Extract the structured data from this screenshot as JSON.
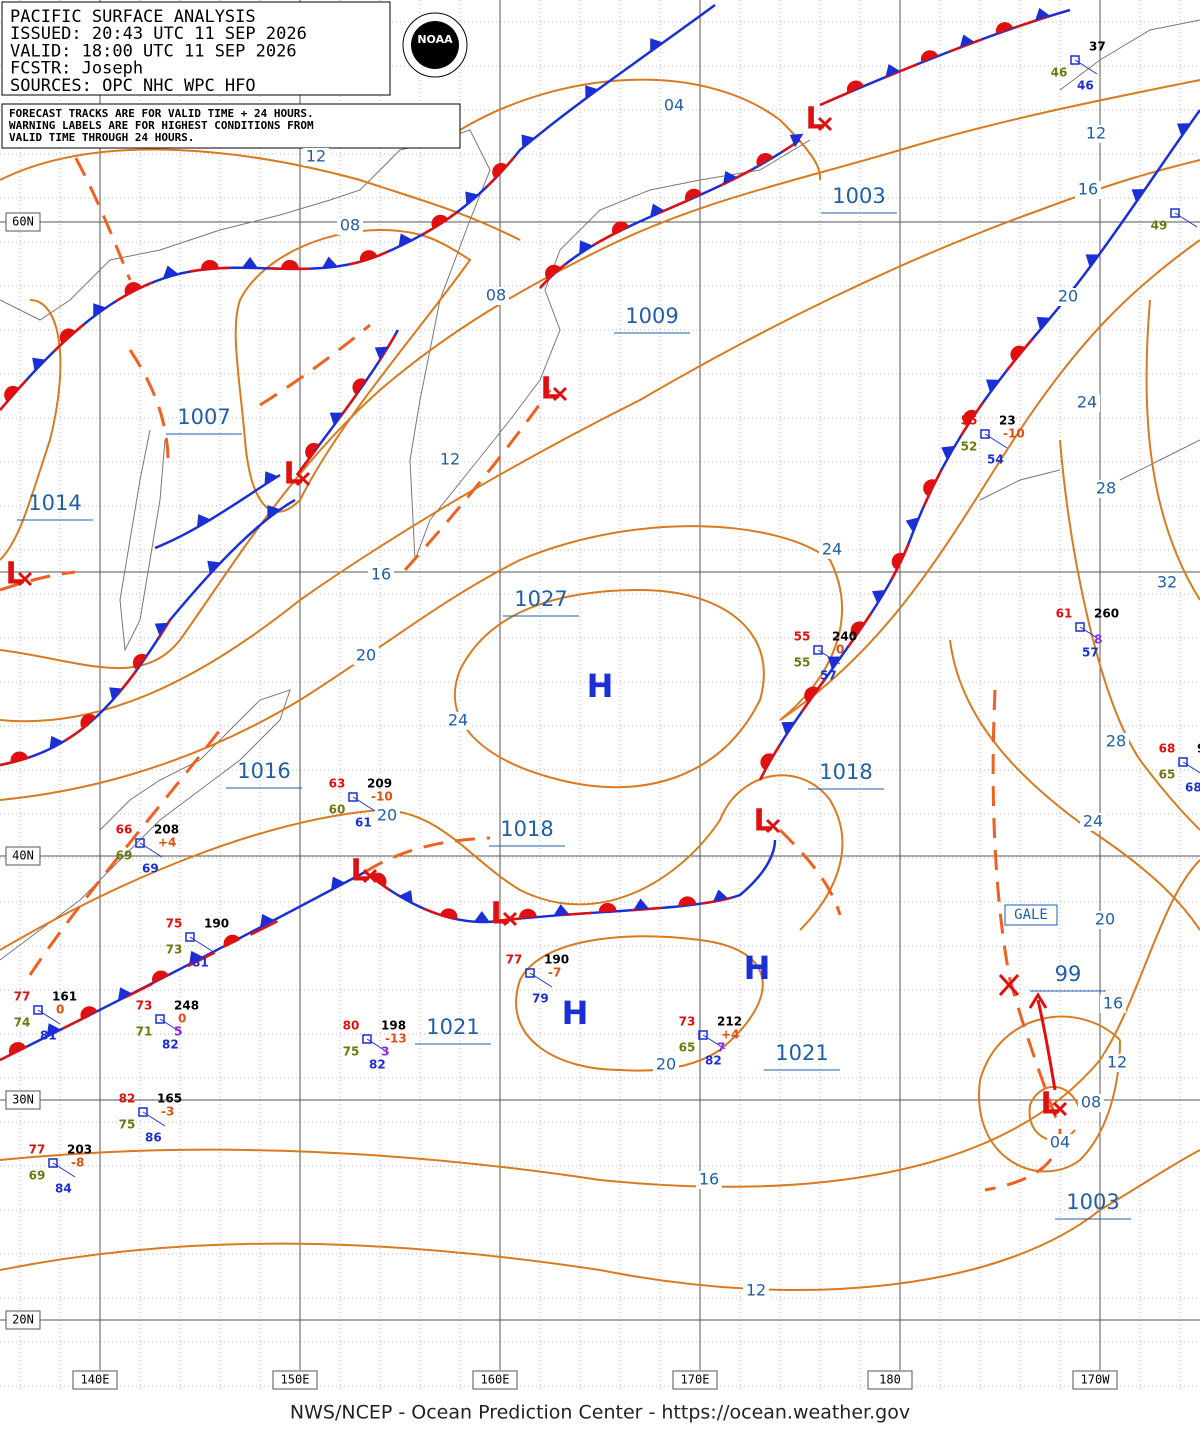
{
  "header": {
    "lines": [
      "PACIFIC SURFACE ANALYSIS",
      "ISSUED: 20:43 UTC 11 SEP 2026",
      "VALID:  18:00 UTC 11 SEP 2026",
      "FCSTR:  Joseph",
      "SOURCES: OPC NHC WPC HFO"
    ],
    "notes": [
      "FORECAST TRACKS ARE FOR VALID TIME + 24 HOURS.",
      "WARNING LABELS ARE FOR HIGHEST CONDITIONS FROM",
      "VALID TIME THROUGH 24 HOURS."
    ],
    "logo": "NOAA"
  },
  "latitude_labels": [
    "60N",
    "40N",
    "30N",
    "20N"
  ],
  "longitude_labels": [
    "140E",
    "150E",
    "160E",
    "170E",
    "180",
    "170W"
  ],
  "isobar_labels": [
    "04",
    "12",
    "08",
    "08",
    "12",
    "16",
    "20",
    "24",
    "24",
    "20",
    "20",
    "16",
    "12",
    "16",
    "20",
    "24",
    "28",
    "32",
    "24",
    "28",
    "24",
    "20",
    "16",
    "12",
    "08",
    "04",
    "12",
    "20"
  ],
  "pressure_centers": [
    "1007",
    "1014",
    "1027",
    "1018",
    "1016",
    "1018",
    "1021",
    "1021",
    "1003",
    "1009",
    "1003",
    "99"
  ],
  "highs": [
    "H",
    "H",
    "H"
  ],
  "lows": [
    "L",
    "L",
    "L",
    "L",
    "L",
    "L",
    "L",
    "L"
  ],
  "warning": "GALE",
  "stations": [
    {
      "temp": "63",
      "pressure": "209",
      "tendency": "-10",
      "dewpoint": "60",
      "extra": "61"
    },
    {
      "temp": "66",
      "pressure": "208",
      "tendency": "+4",
      "dewpoint": "69",
      "extra": "69"
    },
    {
      "temp": "75",
      "pressure": "190",
      "dewpoint": "73",
      "extra": "81"
    },
    {
      "temp": "77",
      "pressure": "161",
      "tendency": "0",
      "dewpoint": "74",
      "extra": "81"
    },
    {
      "temp": "73",
      "pressure": "248",
      "tendency": "0",
      "dewpoint": "71",
      "code": "5",
      "extra": "82"
    },
    {
      "temp": "80",
      "pressure": "198",
      "tendency": "-13",
      "dewpoint": "75",
      "code": "3",
      "extra": "82"
    },
    {
      "temp": "77",
      "pressure": "190",
      "tendency": "-7",
      "extra": "79"
    },
    {
      "temp": "73",
      "pressure": "212",
      "tendency": "+4",
      "dewpoint": "65",
      "code": "7",
      "extra": "82"
    },
    {
      "temp": "82",
      "pressure": "165",
      "tendency": "-3",
      "dewpoint": "75",
      "extra": "86"
    },
    {
      "temp": "77",
      "pressure": "203",
      "tendency": "-8",
      "dewpoint": "69",
      "extra": "84"
    },
    {
      "temp": "55",
      "pressure": "240",
      "tendency": "0",
      "dewpoint": "55",
      "extra": "57"
    },
    {
      "temp": "61",
      "pressure": "260",
      "code": "8",
      "extra": "57"
    },
    {
      "temp": "55",
      "pressure": "23",
      "tendency": "-10",
      "dewpoint": "52",
      "extra": "54"
    },
    {
      "temp": "68",
      "pressure": "9",
      "dewpoint": "65",
      "extra": "68"
    },
    {
      "pressure": "37",
      "dewpoint": "46",
      "extra": "46"
    },
    {
      "dewpoint": "49"
    }
  ],
  "footer": "NWS/NCEP - Ocean Prediction Center - https://ocean.weather.gov"
}
